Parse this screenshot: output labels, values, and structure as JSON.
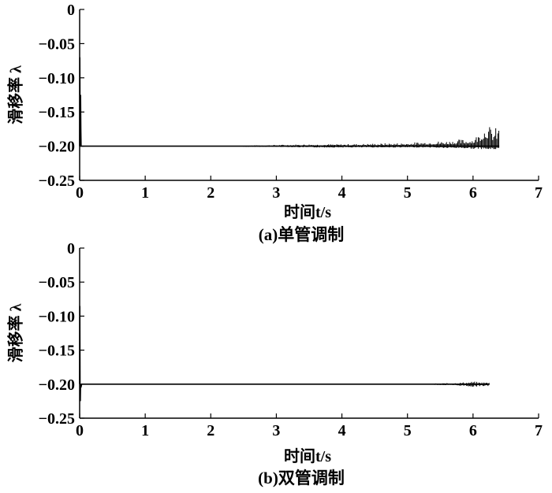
{
  "chart_data": [
    {
      "type": "line",
      "caption": "(a)单管调制",
      "xlabel": "时间t/s",
      "ylabel": "滑移率 λ",
      "xlim": [
        0,
        7
      ],
      "ylim": [
        -0.25,
        0
      ],
      "xticks": [
        0,
        1,
        2,
        3,
        4,
        5,
        6,
        7
      ],
      "yticks": [
        0,
        -0.05,
        -0.1,
        -0.15,
        -0.2,
        -0.25
      ],
      "xtick_labels": [
        "0",
        "1",
        "2",
        "3",
        "4",
        "5",
        "6",
        "7"
      ],
      "ytick_labels": [
        "0",
        "-0.05",
        "-0.10",
        "-0.15",
        "-0.20",
        "-0.25"
      ],
      "grid": false,
      "series": [
        {
          "x": [
            0,
            0.003,
            0.006,
            0.01,
            0.014,
            0.018,
            0.022,
            0.03,
            0.5,
            1,
            2,
            2.5,
            3,
            3.5,
            4,
            4.5,
            5,
            5.5,
            5.8,
            6.0,
            6.1,
            6.2,
            6.3,
            6.4
          ],
          "y": [
            -0.2,
            -0.07,
            -0.15,
            -0.2,
            -0.125,
            -0.175,
            -0.2,
            -0.2,
            -0.2,
            -0.2,
            -0.2,
            -0.2,
            -0.2,
            -0.2,
            -0.2,
            -0.2,
            -0.2,
            -0.2,
            -0.2,
            -0.2,
            -0.2,
            -0.2,
            -0.2,
            -0.2
          ],
          "oscillation": {
            "x": [
              2.5,
              3.0,
              3.5,
              4.0,
              4.5,
              5.0,
              5.3,
              5.6,
              5.8,
              6.0,
              6.1,
              6.2,
              6.3,
              6.4
            ],
            "upper": [
              -0.199,
              -0.198,
              -0.197,
              -0.197,
              -0.196,
              -0.195,
              -0.193,
              -0.192,
              -0.19,
              -0.188,
              -0.18,
              -0.165,
              -0.175,
              -0.17
            ],
            "lower": [
              -0.201,
              -0.201,
              -0.202,
              -0.202,
              -0.202,
              -0.202,
              -0.202,
              -0.203,
              -0.203,
              -0.204,
              -0.204,
              -0.205,
              -0.205,
              -0.204
            ]
          }
        }
      ]
    },
    {
      "type": "line",
      "caption": "(b)双管调制",
      "xlabel": "时间t/s",
      "ylabel": "滑移率 λ",
      "xlim": [
        0,
        7
      ],
      "ylim": [
        -0.25,
        0
      ],
      "xticks": [
        0,
        1,
        2,
        3,
        4,
        5,
        6,
        7
      ],
      "yticks": [
        0,
        -0.05,
        -0.1,
        -0.15,
        -0.2,
        -0.25
      ],
      "xtick_labels": [
        "0",
        "1",
        "2",
        "3",
        "4",
        "5",
        "6",
        "7"
      ],
      "ytick_labels": [
        "0",
        "-0.05",
        "-0.10",
        "-0.15",
        "-0.20",
        "-0.25"
      ],
      "grid": false,
      "series": [
        {
          "x": [
            0,
            0.003,
            0.006,
            0.01,
            0.014,
            0.02,
            0.03,
            1,
            2,
            3,
            4,
            5,
            5.4,
            5.8,
            6.0,
            6.25
          ],
          "y": [
            -0.2,
            -0.085,
            -0.2,
            -0.225,
            -0.2,
            -0.205,
            -0.2,
            -0.2,
            -0.2,
            -0.2,
            -0.2,
            -0.2,
            -0.2,
            -0.2,
            -0.2,
            -0.2
          ],
          "oscillation": {
            "x": [
              5.4,
              5.7,
              5.9,
              6.0,
              6.1,
              6.25
            ],
            "upper": [
              -0.199,
              -0.198,
              -0.197,
              -0.196,
              -0.197,
              -0.197
            ],
            "lower": [
              -0.201,
              -0.202,
              -0.203,
              -0.204,
              -0.203,
              -0.203
            ]
          }
        }
      ]
    }
  ]
}
